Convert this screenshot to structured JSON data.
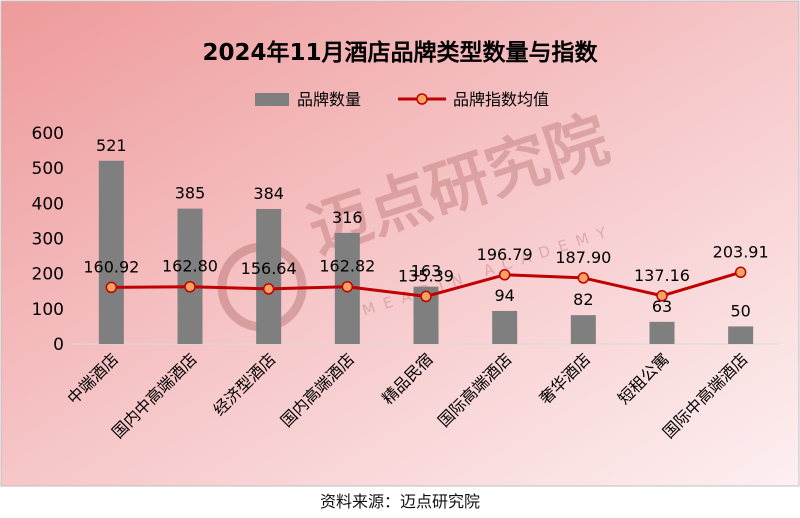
{
  "chart_data": {
    "type": "bar+line",
    "title": "2024年11月酒店品牌类型数量与指数",
    "categories": [
      "中端酒店",
      "国内中高端酒店",
      "经济型酒店",
      "国内高端酒店",
      "精品民宿",
      "国际高端酒店",
      "奢华酒店",
      "短租公寓",
      "国际中高端酒店"
    ],
    "series": [
      {
        "name": "品牌数量",
        "type": "bar",
        "values": [
          521,
          385,
          384,
          316,
          163,
          94,
          82,
          63,
          50
        ],
        "color": "#7f7f7f"
      },
      {
        "name": "品牌指数均值",
        "type": "line",
        "values": [
          160.92,
          162.8,
          156.64,
          162.82,
          135.39,
          196.79,
          187.9,
          137.16,
          203.91
        ],
        "color": "#c00000",
        "marker_fill": "#f4a460"
      }
    ],
    "value_labels_bar": [
      "521",
      "385",
      "384",
      "316",
      "163",
      "94",
      "82",
      "63",
      "50"
    ],
    "value_labels_line": [
      "160.92",
      "162.80",
      "156.64",
      "162.82",
      "135.39",
      "196.79",
      "187.90",
      "137.16",
      "203.91"
    ],
    "ylim": [
      0,
      600
    ],
    "yticks": [
      "0",
      "100",
      "200",
      "300",
      "400",
      "500",
      "600"
    ],
    "legend_position": "top-center",
    "grid": false,
    "watermark_text": "迈点研究院",
    "watermark_subtext": "MEADIN ACADEMY"
  },
  "source": "资料来源：迈点研究院"
}
